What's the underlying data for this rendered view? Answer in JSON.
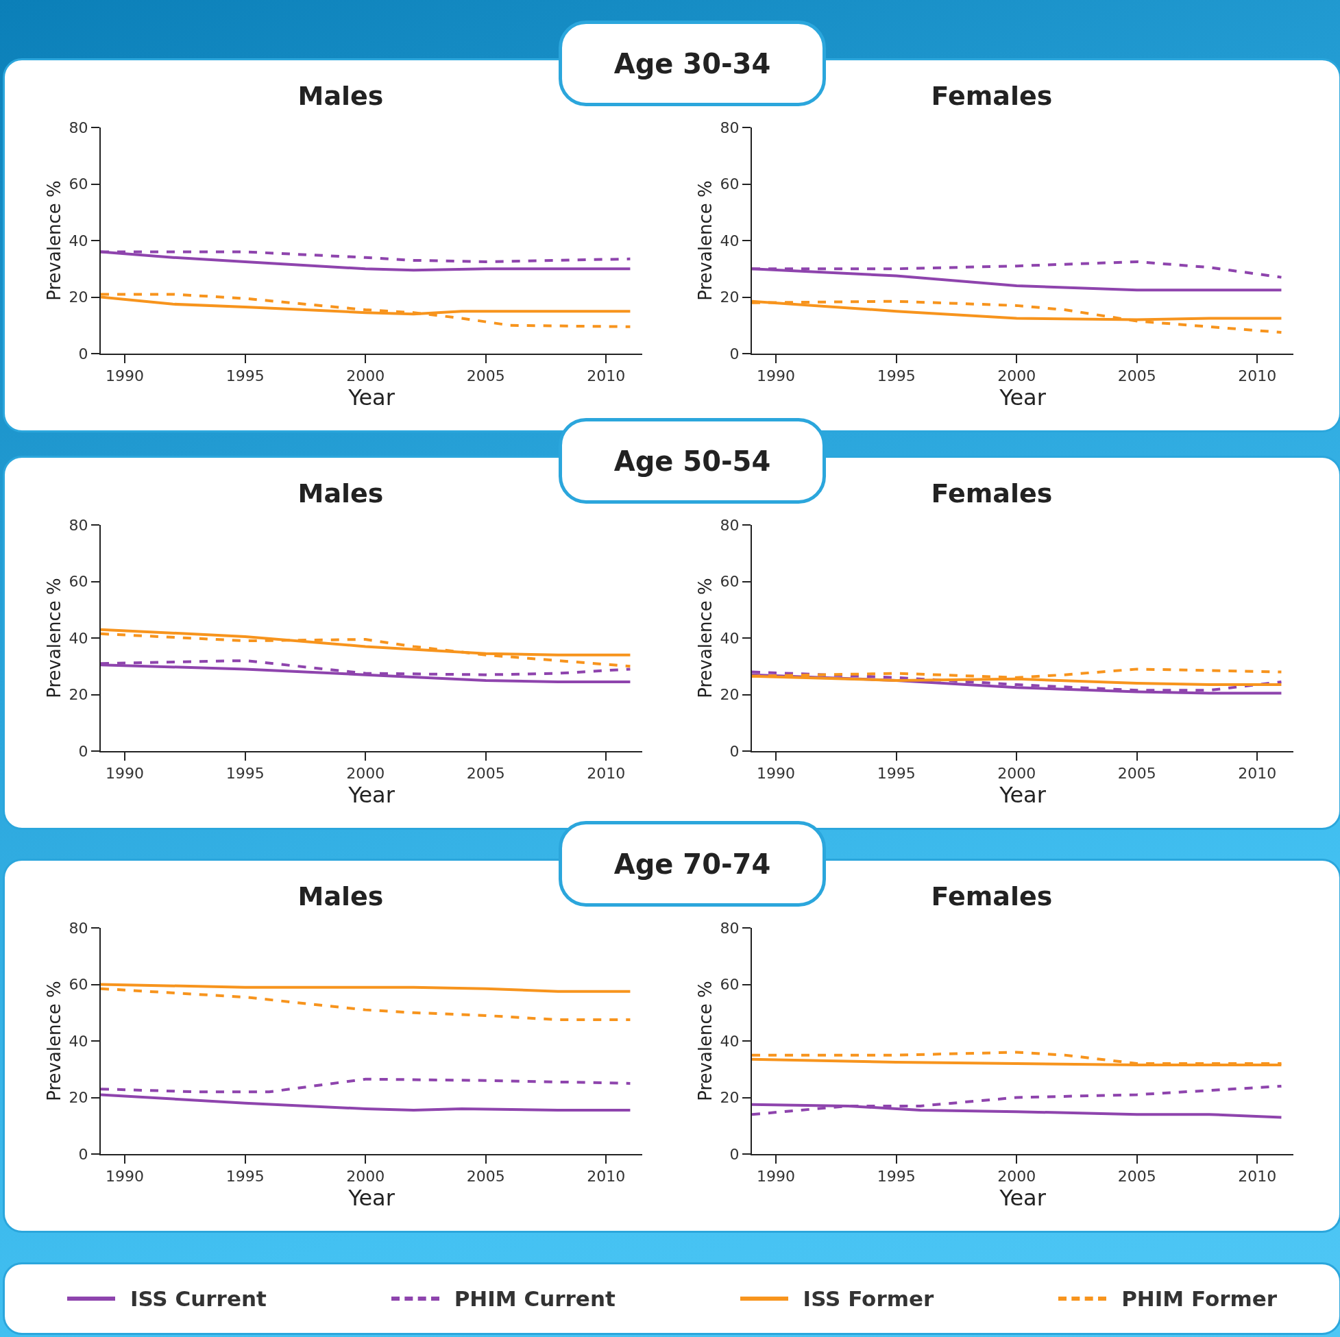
{
  "chart_data": [
    {
      "type": "line",
      "subtitle": "Age 30-34",
      "title": "Males",
      "xlabel": "Year",
      "ylabel": "Prevalence %",
      "xlim": [
        1989,
        2011.5
      ],
      "xticks": [
        1990,
        1995,
        2000,
        2005,
        2010
      ],
      "ylim": [
        0,
        80
      ],
      "yticks": [
        0,
        20,
        40,
        60,
        80
      ],
      "legend": "bottom",
      "series": [
        {
          "name": "ISS Current",
          "color": "#8e44ad",
          "line_style": "solid",
          "x": [
            1989,
            1992,
            1995,
            2000,
            2002,
            2005,
            2011
          ],
          "values": [
            36,
            34,
            32.5,
            30,
            29.5,
            30,
            30
          ]
        },
        {
          "name": "PHIM Current",
          "color": "#8e44ad",
          "line_style": "dashed",
          "x": [
            1989,
            1992,
            1995,
            2000,
            2002,
            2005,
            2008,
            2011
          ],
          "values": [
            36,
            36,
            36,
            34,
            33,
            32.5,
            33,
            33.5
          ]
        },
        {
          "name": "ISS Former",
          "color": "#f7941d",
          "line_style": "solid",
          "x": [
            1989,
            1992,
            1995,
            2000,
            2002,
            2004,
            2011
          ],
          "values": [
            20,
            17.5,
            16.5,
            14.5,
            14,
            15,
            15
          ]
        },
        {
          "name": "PHIM Former",
          "color": "#f7941d",
          "line_style": "dashed",
          "x": [
            1989,
            1992,
            1995,
            2000,
            2002,
            2004,
            2006,
            2011
          ],
          "values": [
            21,
            21,
            19.5,
            15.5,
            14.5,
            12.5,
            10,
            9.5
          ]
        }
      ]
    },
    {
      "type": "line",
      "title": "Females",
      "xlabel": "Year",
      "ylabel": "Prevalence %",
      "xlim": [
        1989,
        2011.5
      ],
      "xticks": [
        1990,
        1995,
        2000,
        2005,
        2010
      ],
      "ylim": [
        0,
        80
      ],
      "yticks": [
        0,
        20,
        40,
        60,
        80
      ],
      "series": [
        {
          "color": "#8e44ad",
          "line_style": "solid",
          "x": [
            1989,
            1995,
            2000,
            2005,
            2011
          ],
          "values": [
            30,
            27.5,
            24,
            22.5,
            22.5
          ]
        },
        {
          "color": "#8e44ad",
          "line_style": "dashed",
          "x": [
            1989,
            1995,
            2000,
            2005,
            2008,
            2011
          ],
          "values": [
            30,
            30,
            31,
            32.5,
            30.5,
            27
          ]
        },
        {
          "color": "#f7941d",
          "line_style": "solid",
          "x": [
            1989,
            1995,
            2000,
            2005,
            2008,
            2011
          ],
          "values": [
            18.5,
            15,
            12.5,
            12,
            12.5,
            12.5
          ]
        },
        {
          "color": "#f7941d",
          "line_style": "dashed",
          "x": [
            1989,
            1995,
            2000,
            2002,
            2005,
            2008,
            2011
          ],
          "values": [
            18,
            18.5,
            17,
            15.5,
            11.5,
            9.5,
            7.5
          ]
        }
      ]
    },
    {
      "type": "line",
      "subtitle": "Age 50-54",
      "title": "Males",
      "xlabel": "Year",
      "ylabel": "Prevalence %",
      "xlim": [
        1989,
        2011.5
      ],
      "xticks": [
        1990,
        1995,
        2000,
        2005,
        2010
      ],
      "ylim": [
        0,
        80
      ],
      "yticks": [
        0,
        20,
        40,
        60,
        80
      ],
      "series": [
        {
          "color": "#8e44ad",
          "line_style": "solid",
          "x": [
            1989,
            1995,
            2000,
            2005,
            2008,
            2011
          ],
          "values": [
            30.5,
            29,
            27,
            25,
            24.5,
            24.5
          ]
        },
        {
          "color": "#8e44ad",
          "line_style": "dashed",
          "x": [
            1989,
            1995,
            2000,
            2005,
            2008,
            2011
          ],
          "values": [
            31,
            32,
            27.5,
            27,
            27.5,
            29
          ]
        },
        {
          "color": "#f7941d",
          "line_style": "solid",
          "x": [
            1989,
            1995,
            2000,
            2005,
            2008,
            2011
          ],
          "values": [
            43,
            40.5,
            37,
            34.5,
            34,
            34
          ]
        },
        {
          "color": "#f7941d",
          "line_style": "dashed",
          "x": [
            1989,
            1995,
            2000,
            2002,
            2005,
            2008,
            2011
          ],
          "values": [
            41.5,
            39,
            39.5,
            37,
            34,
            32,
            30
          ]
        }
      ]
    },
    {
      "type": "line",
      "title": "Females",
      "xlabel": "Year",
      "ylabel": "Prevalence %",
      "xlim": [
        1989,
        2011.5
      ],
      "xticks": [
        1990,
        1995,
        2000,
        2005,
        2010
      ],
      "ylim": [
        0,
        80
      ],
      "yticks": [
        0,
        20,
        40,
        60,
        80
      ],
      "series": [
        {
          "color": "#8e44ad",
          "line_style": "solid",
          "x": [
            1989,
            1995,
            2000,
            2005,
            2008,
            2011
          ],
          "values": [
            27,
            25,
            22.5,
            21,
            20.5,
            20.5
          ]
        },
        {
          "color": "#8e44ad",
          "line_style": "dashed",
          "x": [
            1989,
            1995,
            2000,
            2005,
            2008,
            2011
          ],
          "values": [
            28,
            26,
            23.5,
            21.5,
            21.5,
            24.5
          ]
        },
        {
          "color": "#f7941d",
          "line_style": "solid",
          "x": [
            1989,
            1995,
            2000,
            2005,
            2008,
            2011
          ],
          "values": [
            26.5,
            25,
            25.5,
            24,
            23.5,
            23.5
          ]
        },
        {
          "color": "#f7941d",
          "line_style": "dashed",
          "x": [
            1989,
            1995,
            2000,
            2002,
            2005,
            2008,
            2011
          ],
          "values": [
            26.5,
            27.5,
            26,
            27,
            29,
            28.5,
            28
          ]
        }
      ]
    },
    {
      "type": "line",
      "subtitle": "Age 70-74",
      "title": "Males",
      "xlabel": "Year",
      "ylabel": "Prevalence %",
      "xlim": [
        1989,
        2011.5
      ],
      "xticks": [
        1990,
        1995,
        2000,
        2005,
        2010
      ],
      "ylim": [
        0,
        80
      ],
      "yticks": [
        0,
        20,
        40,
        60,
        80
      ],
      "series": [
        {
          "color": "#8e44ad",
          "line_style": "solid",
          "x": [
            1989,
            1995,
            2000,
            2002,
            2004,
            2008,
            2011
          ],
          "values": [
            21,
            18,
            16,
            15.5,
            16,
            15.5,
            15.5
          ]
        },
        {
          "color": "#8e44ad",
          "line_style": "dashed",
          "x": [
            1989,
            1993,
            1996,
            2000,
            2005,
            2008,
            2011
          ],
          "values": [
            23,
            22,
            22,
            26.5,
            26,
            25.5,
            25
          ]
        },
        {
          "color": "#f7941d",
          "line_style": "solid",
          "x": [
            1989,
            1995,
            2000,
            2002,
            2005,
            2008,
            2011
          ],
          "values": [
            60,
            59,
            59,
            59,
            58.5,
            57.5,
            57.5
          ]
        },
        {
          "color": "#f7941d",
          "line_style": "dashed",
          "x": [
            1989,
            1995,
            2000,
            2002,
            2005,
            2008,
            2011
          ],
          "values": [
            58.5,
            55.5,
            51,
            50,
            49,
            47.5,
            47.5
          ]
        }
      ]
    },
    {
      "type": "line",
      "title": "Females",
      "xlabel": "Year",
      "ylabel": "Prevalence %",
      "xlim": [
        1989,
        2011.5
      ],
      "xticks": [
        1990,
        1995,
        2000,
        2005,
        2010
      ],
      "ylim": [
        0,
        80
      ],
      "yticks": [
        0,
        20,
        40,
        60,
        80
      ],
      "series": [
        {
          "color": "#8e44ad",
          "line_style": "solid",
          "x": [
            1989,
            1993,
            1996,
            2000,
            2005,
            2008,
            2011
          ],
          "values": [
            17.5,
            17,
            15.5,
            15,
            14,
            14,
            13
          ]
        },
        {
          "color": "#8e44ad",
          "line_style": "dashed",
          "x": [
            1989,
            1993,
            1996,
            2000,
            2005,
            2008,
            2011
          ],
          "values": [
            14,
            17,
            17,
            20,
            21,
            22.5,
            24
          ]
        },
        {
          "color": "#f7941d",
          "line_style": "solid",
          "x": [
            1989,
            1995,
            2000,
            2005,
            2011
          ],
          "values": [
            33.5,
            32.5,
            32,
            31.5,
            31.5
          ]
        },
        {
          "color": "#f7941d",
          "line_style": "dashed",
          "x": [
            1989,
            1995,
            2000,
            2002,
            2005,
            2008,
            2011
          ],
          "values": [
            35,
            35,
            36,
            35,
            32,
            32,
            32
          ]
        }
      ]
    }
  ]
}
